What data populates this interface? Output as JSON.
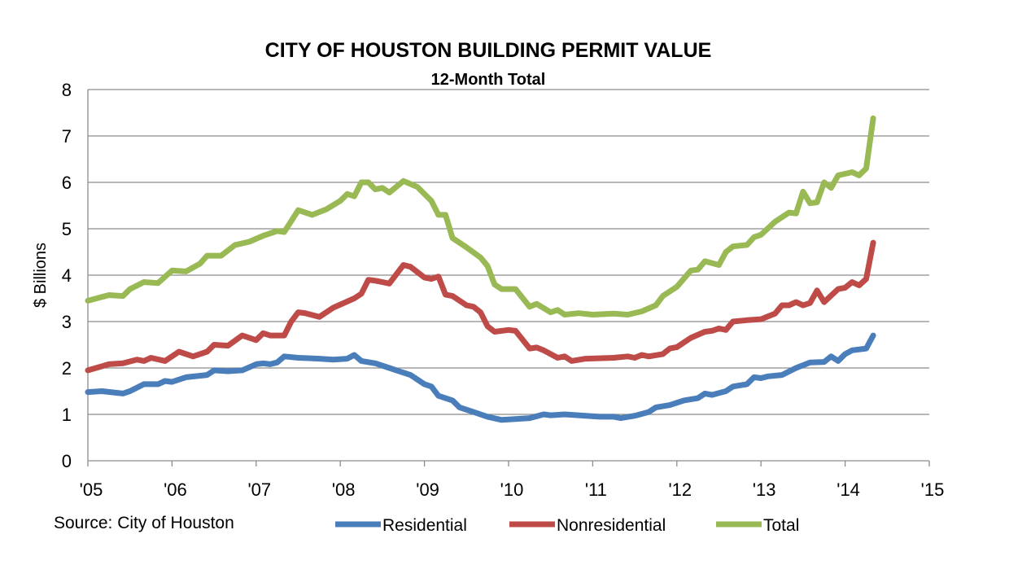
{
  "chart_data": {
    "type": "line",
    "title": "CITY OF HOUSTON BUILDING PERMIT VALUE",
    "subtitle": "12-Month Total",
    "ylabel": "$ Billions",
    "xlabel": "",
    "ylim": [
      0,
      8
    ],
    "yticks": [
      "0",
      "1",
      "2",
      "3",
      "4",
      "5",
      "6",
      "7",
      "8"
    ],
    "xlim": [
      "2005-01",
      "2015-01"
    ],
    "xticks": [
      "'05",
      "'06",
      "'07",
      "'08",
      "'09",
      "'10",
      "'11",
      "'12",
      "'13",
      "'14",
      "'15"
    ],
    "grid": "horizontal",
    "legend_placement": "bottom",
    "source": "Source: City of Houston",
    "series": [
      {
        "name": "Residential",
        "color": "#4a7ebb",
        "points": [
          [
            "2005-01",
            1.48
          ],
          [
            "2005-03",
            1.5
          ],
          [
            "2005-06",
            1.45
          ],
          [
            "2005-07",
            1.5
          ],
          [
            "2005-09",
            1.65
          ],
          [
            "2005-11",
            1.65
          ],
          [
            "2005-12",
            1.72
          ],
          [
            "2006-01",
            1.7
          ],
          [
            "2006-03",
            1.8
          ],
          [
            "2006-06",
            1.85
          ],
          [
            "2006-07",
            1.95
          ],
          [
            "2006-09",
            1.93
          ],
          [
            "2006-11",
            1.95
          ],
          [
            "2007-01",
            2.08
          ],
          [
            "2007-02",
            2.1
          ],
          [
            "2007-03",
            2.08
          ],
          [
            "2007-04",
            2.12
          ],
          [
            "2007-05",
            2.25
          ],
          [
            "2007-07",
            2.22
          ],
          [
            "2007-10",
            2.2
          ],
          [
            "2007-12",
            2.18
          ],
          [
            "2008-02",
            2.2
          ],
          [
            "2008-03",
            2.28
          ],
          [
            "2008-04",
            2.15
          ],
          [
            "2008-06",
            2.1
          ],
          [
            "2008-08",
            2.0
          ],
          [
            "2008-09",
            1.95
          ],
          [
            "2008-11",
            1.85
          ],
          [
            "2009-01",
            1.65
          ],
          [
            "2009-02",
            1.6
          ],
          [
            "2009-03",
            1.4
          ],
          [
            "2009-05",
            1.3
          ],
          [
            "2009-06",
            1.15
          ],
          [
            "2009-08",
            1.05
          ],
          [
            "2009-10",
            0.95
          ],
          [
            "2009-12",
            0.88
          ],
          [
            "2010-02",
            0.9
          ],
          [
            "2010-04",
            0.92
          ],
          [
            "2010-06",
            1.0
          ],
          [
            "2010-07",
            0.98
          ],
          [
            "2010-09",
            1.0
          ],
          [
            "2010-12",
            0.97
          ],
          [
            "2011-02",
            0.95
          ],
          [
            "2011-04",
            0.95
          ],
          [
            "2011-05",
            0.92
          ],
          [
            "2011-07",
            0.97
          ],
          [
            "2011-09",
            1.05
          ],
          [
            "2011-10",
            1.15
          ],
          [
            "2011-12",
            1.2
          ],
          [
            "2012-02",
            1.3
          ],
          [
            "2012-04",
            1.35
          ],
          [
            "2012-05",
            1.45
          ],
          [
            "2012-06",
            1.42
          ],
          [
            "2012-08",
            1.5
          ],
          [
            "2012-09",
            1.6
          ],
          [
            "2012-11",
            1.65
          ],
          [
            "2012-12",
            1.8
          ],
          [
            "2013-01",
            1.78
          ],
          [
            "2013-02",
            1.82
          ],
          [
            "2013-04",
            1.85
          ],
          [
            "2013-06",
            2.0
          ],
          [
            "2013-08",
            2.12
          ],
          [
            "2013-10",
            2.13
          ],
          [
            "2013-11",
            2.25
          ],
          [
            "2013-12",
            2.15
          ],
          [
            "2014-01",
            2.3
          ],
          [
            "2014-02",
            2.38
          ],
          [
            "2014-04",
            2.42
          ],
          [
            "2014-05",
            2.7
          ]
        ]
      },
      {
        "name": "Nonresidential",
        "color": "#be4b48",
        "points": [
          [
            "2005-01",
            1.95
          ],
          [
            "2005-04",
            2.08
          ],
          [
            "2005-06",
            2.1
          ],
          [
            "2005-08",
            2.18
          ],
          [
            "2005-09",
            2.15
          ],
          [
            "2005-10",
            2.22
          ],
          [
            "2005-12",
            2.15
          ],
          [
            "2006-02",
            2.35
          ],
          [
            "2006-04",
            2.25
          ],
          [
            "2006-06",
            2.35
          ],
          [
            "2006-07",
            2.5
          ],
          [
            "2006-09",
            2.48
          ],
          [
            "2006-11",
            2.7
          ],
          [
            "2007-01",
            2.6
          ],
          [
            "2007-02",
            2.75
          ],
          [
            "2007-03",
            2.7
          ],
          [
            "2007-05",
            2.7
          ],
          [
            "2007-06",
            3.0
          ],
          [
            "2007-07",
            3.2
          ],
          [
            "2007-08",
            3.18
          ],
          [
            "2007-10",
            3.1
          ],
          [
            "2007-12",
            3.3
          ],
          [
            "2008-03",
            3.5
          ],
          [
            "2008-04",
            3.6
          ],
          [
            "2008-05",
            3.9
          ],
          [
            "2008-06",
            3.88
          ],
          [
            "2008-07",
            3.85
          ],
          [
            "2008-08",
            3.82
          ],
          [
            "2008-10",
            4.22
          ],
          [
            "2008-11",
            4.18
          ],
          [
            "2009-01",
            3.95
          ],
          [
            "2009-02",
            3.92
          ],
          [
            "2009-03",
            3.97
          ],
          [
            "2009-04",
            3.58
          ],
          [
            "2009-05",
            3.55
          ],
          [
            "2009-07",
            3.35
          ],
          [
            "2009-08",
            3.32
          ],
          [
            "2009-09",
            3.2
          ],
          [
            "2009-10",
            2.9
          ],
          [
            "2009-11",
            2.78
          ],
          [
            "2010-01",
            2.82
          ],
          [
            "2010-02",
            2.8
          ],
          [
            "2010-04",
            2.42
          ],
          [
            "2010-05",
            2.44
          ],
          [
            "2010-06",
            2.38
          ],
          [
            "2010-08",
            2.22
          ],
          [
            "2010-09",
            2.25
          ],
          [
            "2010-10",
            2.15
          ],
          [
            "2010-12",
            2.2
          ],
          [
            "2011-04",
            2.22
          ],
          [
            "2011-06",
            2.25
          ],
          [
            "2011-07",
            2.22
          ],
          [
            "2011-08",
            2.28
          ],
          [
            "2011-09",
            2.25
          ],
          [
            "2011-11",
            2.3
          ],
          [
            "2011-12",
            2.42
          ],
          [
            "2012-01",
            2.45
          ],
          [
            "2012-03",
            2.65
          ],
          [
            "2012-05",
            2.78
          ],
          [
            "2012-06",
            2.8
          ],
          [
            "2012-07",
            2.85
          ],
          [
            "2012-08",
            2.82
          ],
          [
            "2012-09",
            3.0
          ],
          [
            "2012-11",
            3.03
          ],
          [
            "2013-01",
            3.05
          ],
          [
            "2013-03",
            3.17
          ],
          [
            "2013-04",
            3.35
          ],
          [
            "2013-05",
            3.35
          ],
          [
            "2013-06",
            3.42
          ],
          [
            "2013-07",
            3.35
          ],
          [
            "2013-08",
            3.4
          ],
          [
            "2013-09",
            3.67
          ],
          [
            "2013-10",
            3.42
          ],
          [
            "2013-12",
            3.7
          ],
          [
            "2014-01",
            3.73
          ],
          [
            "2014-02",
            3.85
          ],
          [
            "2014-03",
            3.78
          ],
          [
            "2014-04",
            3.92
          ],
          [
            "2014-05",
            4.7
          ]
        ]
      },
      {
        "name": "Total",
        "color": "#98b954",
        "points": [
          [
            "2005-01",
            3.45
          ],
          [
            "2005-04",
            3.57
          ],
          [
            "2005-06",
            3.55
          ],
          [
            "2005-07",
            3.7
          ],
          [
            "2005-09",
            3.85
          ],
          [
            "2005-11",
            3.83
          ],
          [
            "2006-01",
            4.1
          ],
          [
            "2006-03",
            4.08
          ],
          [
            "2006-05",
            4.25
          ],
          [
            "2006-06",
            4.42
          ],
          [
            "2006-08",
            4.42
          ],
          [
            "2006-10",
            4.65
          ],
          [
            "2006-12",
            4.72
          ],
          [
            "2007-02",
            4.85
          ],
          [
            "2007-04",
            4.95
          ],
          [
            "2007-05",
            4.93
          ],
          [
            "2007-07",
            5.4
          ],
          [
            "2007-09",
            5.3
          ],
          [
            "2007-11",
            5.42
          ],
          [
            "2008-01",
            5.6
          ],
          [
            "2008-02",
            5.75
          ],
          [
            "2008-03",
            5.7
          ],
          [
            "2008-04",
            6.0
          ],
          [
            "2008-05",
            6.0
          ],
          [
            "2008-06",
            5.85
          ],
          [
            "2008-07",
            5.88
          ],
          [
            "2008-08",
            5.78
          ],
          [
            "2008-10",
            6.03
          ],
          [
            "2008-12",
            5.9
          ],
          [
            "2009-02",
            5.6
          ],
          [
            "2009-03",
            5.3
          ],
          [
            "2009-04",
            5.3
          ],
          [
            "2009-05",
            4.8
          ],
          [
            "2009-07",
            4.6
          ],
          [
            "2009-09",
            4.38
          ],
          [
            "2009-10",
            4.2
          ],
          [
            "2009-11",
            3.8
          ],
          [
            "2009-12",
            3.7
          ],
          [
            "2010-02",
            3.7
          ],
          [
            "2010-04",
            3.32
          ],
          [
            "2010-05",
            3.38
          ],
          [
            "2010-07",
            3.2
          ],
          [
            "2010-08",
            3.25
          ],
          [
            "2010-09",
            3.15
          ],
          [
            "2010-11",
            3.18
          ],
          [
            "2011-01",
            3.15
          ],
          [
            "2011-04",
            3.17
          ],
          [
            "2011-06",
            3.15
          ],
          [
            "2011-08",
            3.22
          ],
          [
            "2011-10",
            3.35
          ],
          [
            "2011-11",
            3.55
          ],
          [
            "2012-01",
            3.75
          ],
          [
            "2012-03",
            4.1
          ],
          [
            "2012-04",
            4.12
          ],
          [
            "2012-05",
            4.3
          ],
          [
            "2012-07",
            4.22
          ],
          [
            "2012-08",
            4.5
          ],
          [
            "2012-09",
            4.62
          ],
          [
            "2012-11",
            4.65
          ],
          [
            "2012-12",
            4.82
          ],
          [
            "2013-01",
            4.87
          ],
          [
            "2013-03",
            5.15
          ],
          [
            "2013-05",
            5.35
          ],
          [
            "2013-06",
            5.33
          ],
          [
            "2013-07",
            5.8
          ],
          [
            "2013-08",
            5.55
          ],
          [
            "2013-09",
            5.57
          ],
          [
            "2013-10",
            6.0
          ],
          [
            "2013-11",
            5.88
          ],
          [
            "2013-12",
            6.15
          ],
          [
            "2014-02",
            6.22
          ],
          [
            "2014-03",
            6.15
          ],
          [
            "2014-04",
            6.3
          ],
          [
            "2014-05",
            7.38
          ]
        ]
      }
    ]
  }
}
